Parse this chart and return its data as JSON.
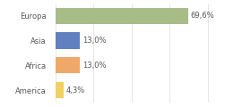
{
  "categories": [
    "America",
    "Africa",
    "Asia",
    "Europa"
  ],
  "values": [
    4.3,
    13.0,
    13.0,
    69.6
  ],
  "bar_colors": [
    "#f0d060",
    "#f0a868",
    "#6080c0",
    "#a8bc88"
  ],
  "labels": [
    "4,3%",
    "13,0%",
    "13,0%",
    "69,6%"
  ],
  "xlim": [
    0,
    100
  ],
  "background_color": "#ffffff",
  "label_fontsize": 6.0,
  "category_fontsize": 6.0,
  "bar_height": 0.65,
  "grid_color": "#dddddd",
  "text_color": "#555555"
}
